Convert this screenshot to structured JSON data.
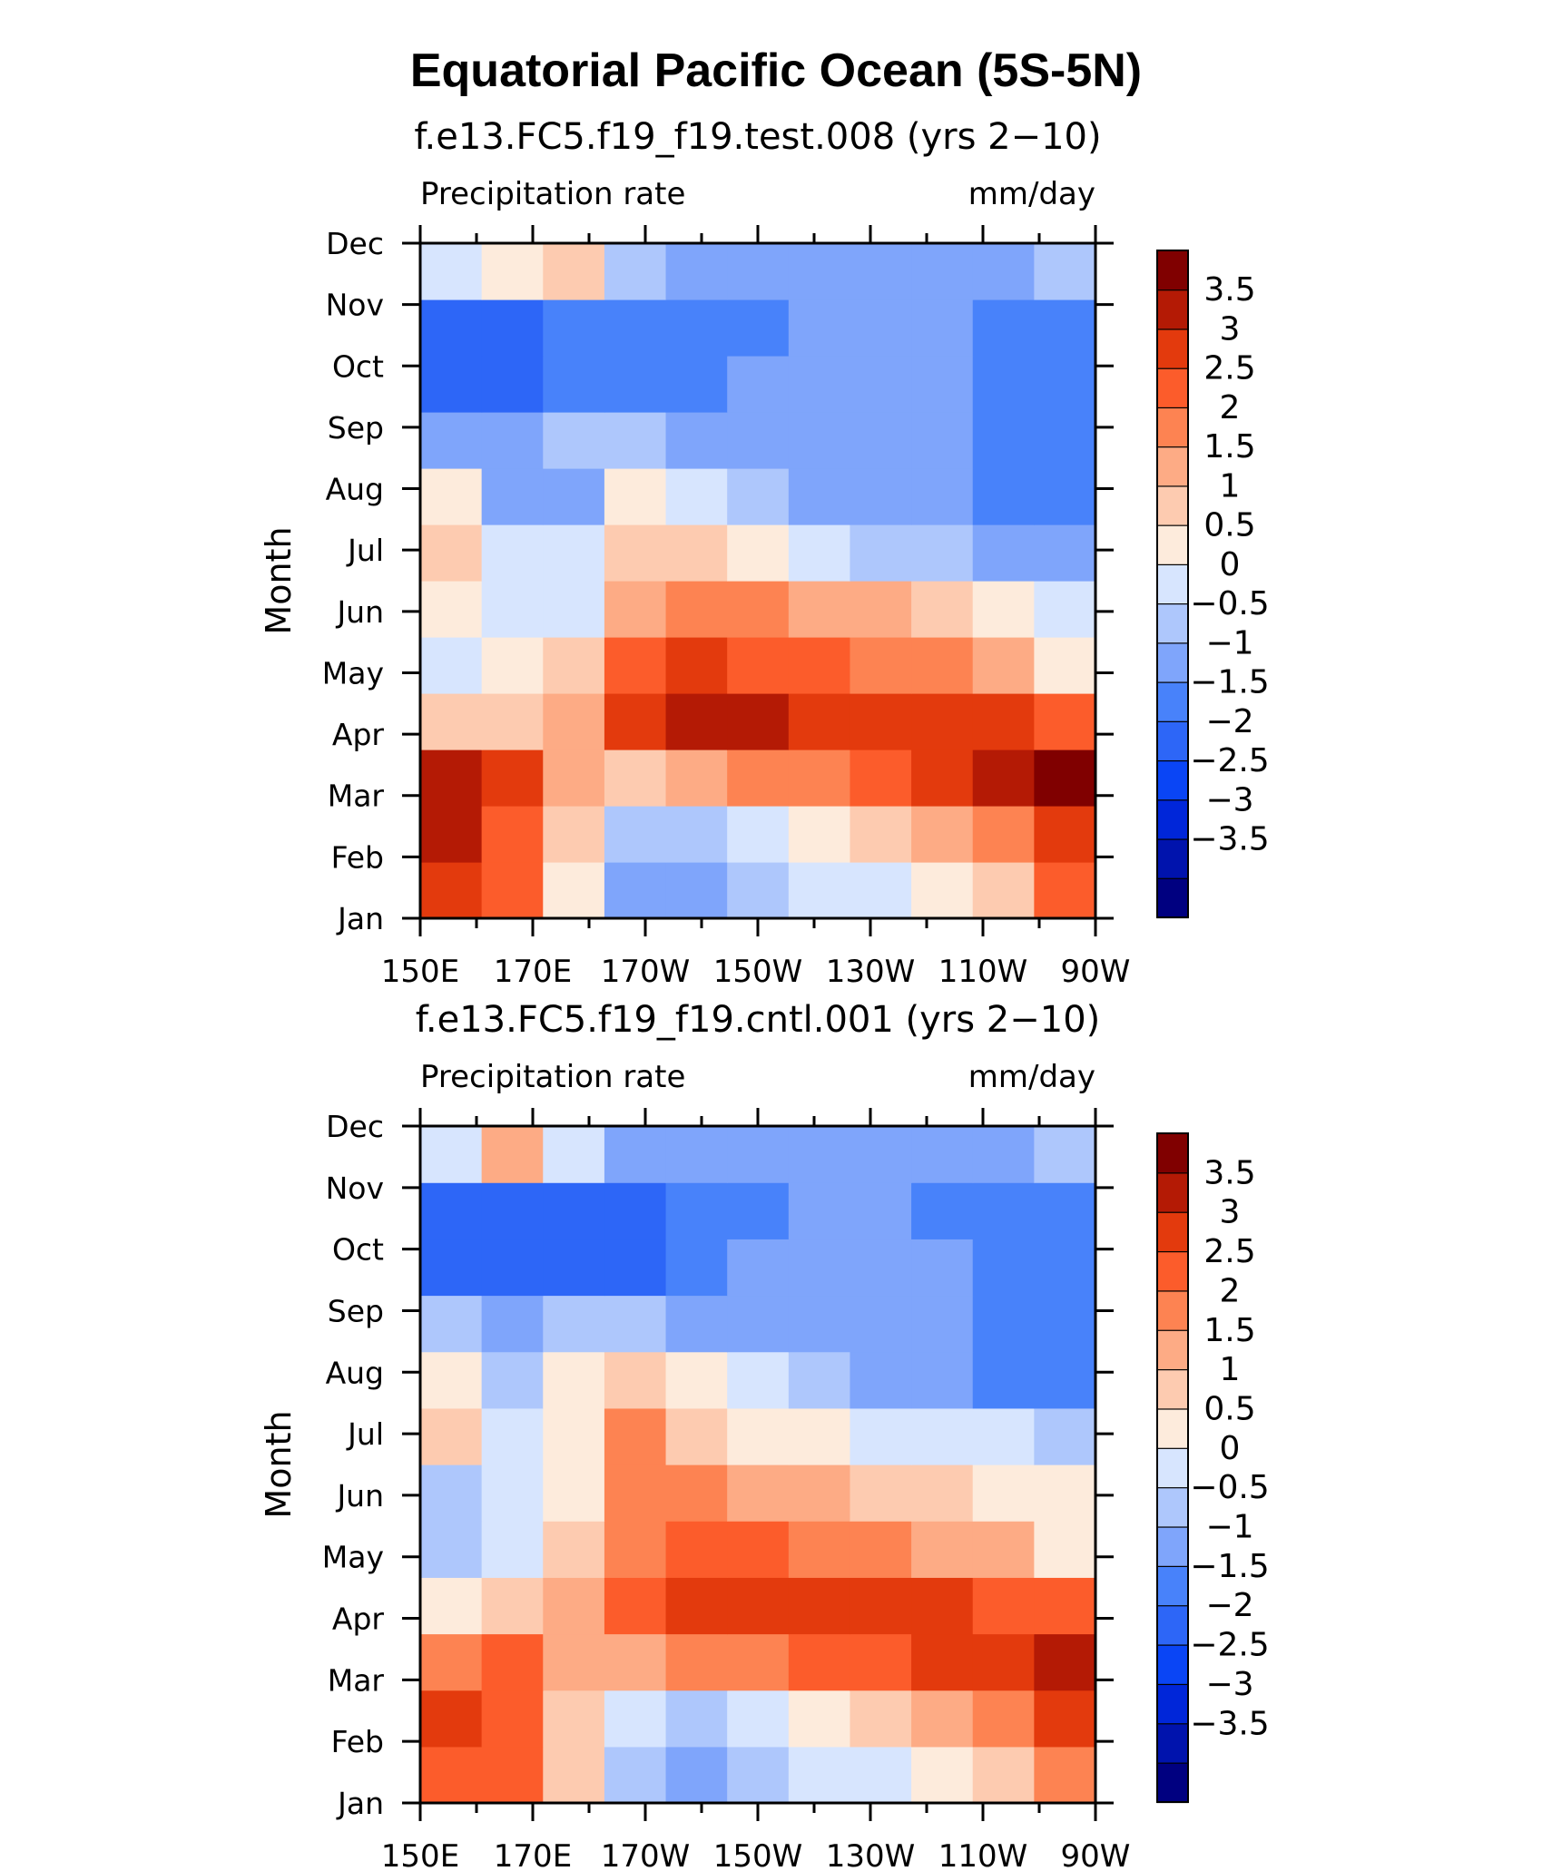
{
  "page": {
    "title": "Equatorial Pacific Ocean (5S-5N)"
  },
  "colors": {
    "levels": [
      "#000080",
      "#0013ad",
      "#0026d9",
      "#0a45f5",
      "#2d66f7",
      "#4882fa",
      "#7fa5fb",
      "#aec7fc",
      "#d7e5fe",
      "#fdebdc",
      "#fdcbb0",
      "#fdab85",
      "#fd8352",
      "#fc5c2b",
      "#e33a0d",
      "#b41a05",
      "#800000"
    ]
  },
  "chart_data": [
    {
      "type": "heatmap",
      "title": "f.e13.FC5.f19_f19.test.008 (yrs 2−10)",
      "left_label": "Precipitation rate",
      "right_label": "mm/day",
      "xlabel": "",
      "ylabel": "Month",
      "x": [
        "150E",
        "170E",
        "170W",
        "150W",
        "130W",
        "110W",
        "90W"
      ],
      "y": [
        "Jan",
        "Feb",
        "Mar",
        "Apr",
        "May",
        "Jun",
        "Jul",
        "Aug",
        "Sep",
        "Oct",
        "Nov",
        "Dec"
      ],
      "xlim": [
        150,
        270
      ],
      "colorbar": {
        "levels": [
          -3.5,
          -3,
          -2.5,
          -2,
          -1.5,
          -1,
          -0.5,
          0,
          0.5,
          1,
          1.5,
          2,
          2.5,
          3,
          3.5
        ],
        "labels": [
          "3.5",
          "3",
          "2.5",
          "2",
          "1.5",
          "1",
          "0.5",
          "0",
          "−0.5",
          "−1",
          "−1.5",
          "−2",
          "−2.5",
          "−3",
          "−3.5"
        ]
      },
      "values": [
        [
          2.5,
          2.0,
          0.0,
          -1.2,
          -1.5,
          -1.0,
          -0.5,
          -0.3,
          0.0,
          0.8,
          2.0
        ],
        [
          3.0,
          2.2,
          0.5,
          -0.8,
          -1.0,
          -0.5,
          0.0,
          0.5,
          1.0,
          1.8,
          2.8
        ],
        [
          3.2,
          2.5,
          1.0,
          0.8,
          1.2,
          1.5,
          1.8,
          2.2,
          2.5,
          3.2,
          3.8
        ],
        [
          0.5,
          0.8,
          1.2,
          2.5,
          3.0,
          3.0,
          2.8,
          2.8,
          2.5,
          2.5,
          2.0
        ],
        [
          -0.5,
          0.0,
          0.5,
          2.0,
          2.5,
          2.3,
          2.0,
          1.8,
          1.5,
          1.0,
          0.0
        ],
        [
          0.0,
          -0.2,
          -0.5,
          1.2,
          1.8,
          1.5,
          1.3,
          1.0,
          0.5,
          0.0,
          -0.5
        ],
        [
          0.5,
          -0.5,
          -0.3,
          0.8,
          0.5,
          0.0,
          -0.5,
          -0.8,
          -1.0,
          -1.2,
          -1.2
        ],
        [
          0.3,
          -1.5,
          -1.2,
          0.0,
          -0.5,
          -1.0,
          -1.2,
          -1.5,
          -1.5,
          -1.8,
          -1.8
        ],
        [
          -1.2,
          -1.5,
          -1.0,
          -1.0,
          -1.5,
          -1.5,
          -1.5,
          -1.5,
          -1.5,
          -1.8,
          -1.8
        ],
        [
          -2.2,
          -2.3,
          -2.0,
          -2.0,
          -1.8,
          -1.5,
          -1.5,
          -1.5,
          -1.5,
          -2.0,
          -2.0
        ],
        [
          -2.5,
          -2.3,
          -1.8,
          -1.8,
          -1.8,
          -1.8,
          -1.5,
          -1.5,
          -1.5,
          -1.8,
          -1.8
        ],
        [
          -0.5,
          0.0,
          0.5,
          -1.0,
          -1.5,
          -1.5,
          -1.5,
          -1.5,
          -1.5,
          -1.5,
          -1.0
        ]
      ]
    },
    {
      "type": "heatmap",
      "title": "f.e13.FC5.f19_f19.cntl.001 (yrs 2−10)",
      "left_label": "Precipitation rate",
      "right_label": "mm/day",
      "xlabel": "",
      "ylabel": "Month",
      "x": [
        "150E",
        "170E",
        "170W",
        "150W",
        "130W",
        "110W",
        "90W"
      ],
      "y": [
        "Jan",
        "Feb",
        "Mar",
        "Apr",
        "May",
        "Jun",
        "Jul",
        "Aug",
        "Sep",
        "Oct",
        "Nov",
        "Dec"
      ],
      "xlim": [
        150,
        270
      ],
      "colorbar": {
        "levels": [
          -3.5,
          -3,
          -2.5,
          -2,
          -1.5,
          -1,
          -0.5,
          0,
          0.5,
          1,
          1.5,
          2,
          2.5,
          3,
          3.5
        ],
        "labels": [
          "3.5",
          "3",
          "2.5",
          "2",
          "1.5",
          "1",
          "0.5",
          "0",
          "−0.5",
          "−1",
          "−1.5",
          "−2",
          "−2.5",
          "−3",
          "−3.5"
        ]
      },
      "values": [
        [
          2.0,
          2.0,
          0.5,
          -0.8,
          -1.2,
          -0.8,
          -0.5,
          -0.2,
          0.0,
          0.8,
          1.8
        ],
        [
          2.5,
          2.2,
          0.8,
          -0.5,
          -0.8,
          -0.5,
          0.0,
          0.5,
          1.0,
          1.8,
          2.5
        ],
        [
          1.5,
          2.0,
          1.0,
          1.0,
          1.5,
          1.8,
          2.0,
          2.3,
          2.5,
          2.8,
          3.2
        ],
        [
          0.3,
          0.5,
          1.0,
          2.0,
          2.8,
          2.8,
          2.8,
          2.8,
          2.5,
          2.3,
          2.0
        ],
        [
          -0.8,
          -0.5,
          0.5,
          1.8,
          2.3,
          2.0,
          1.8,
          1.5,
          1.3,
          1.0,
          0.0
        ],
        [
          -0.8,
          -0.5,
          0.3,
          1.5,
          1.5,
          1.2,
          1.0,
          0.8,
          0.5,
          0.3,
          0.0
        ],
        [
          0.5,
          -0.3,
          0.3,
          1.5,
          0.8,
          0.3,
          0.0,
          -0.3,
          -0.5,
          -0.5,
          -0.8
        ],
        [
          0.3,
          -0.8,
          0.0,
          0.8,
          0.0,
          -0.5,
          -1.0,
          -1.2,
          -1.5,
          -2.0,
          -2.0
        ],
        [
          -1.0,
          -1.5,
          -1.0,
          -0.8,
          -1.2,
          -1.5,
          -1.5,
          -1.5,
          -1.5,
          -2.0,
          -1.8
        ],
        [
          -2.3,
          -2.3,
          -2.5,
          -2.5,
          -1.8,
          -1.5,
          -1.5,
          -1.5,
          -1.5,
          -1.8,
          -1.8
        ],
        [
          -2.5,
          -2.2,
          -2.2,
          -2.2,
          -2.0,
          -1.8,
          -1.5,
          -1.5,
          -1.8,
          -1.8,
          -1.8
        ],
        [
          -0.5,
          1.0,
          -0.5,
          -1.5,
          -1.5,
          -1.5,
          -1.5,
          -1.5,
          -1.5,
          -1.5,
          -1.0
        ]
      ]
    }
  ]
}
